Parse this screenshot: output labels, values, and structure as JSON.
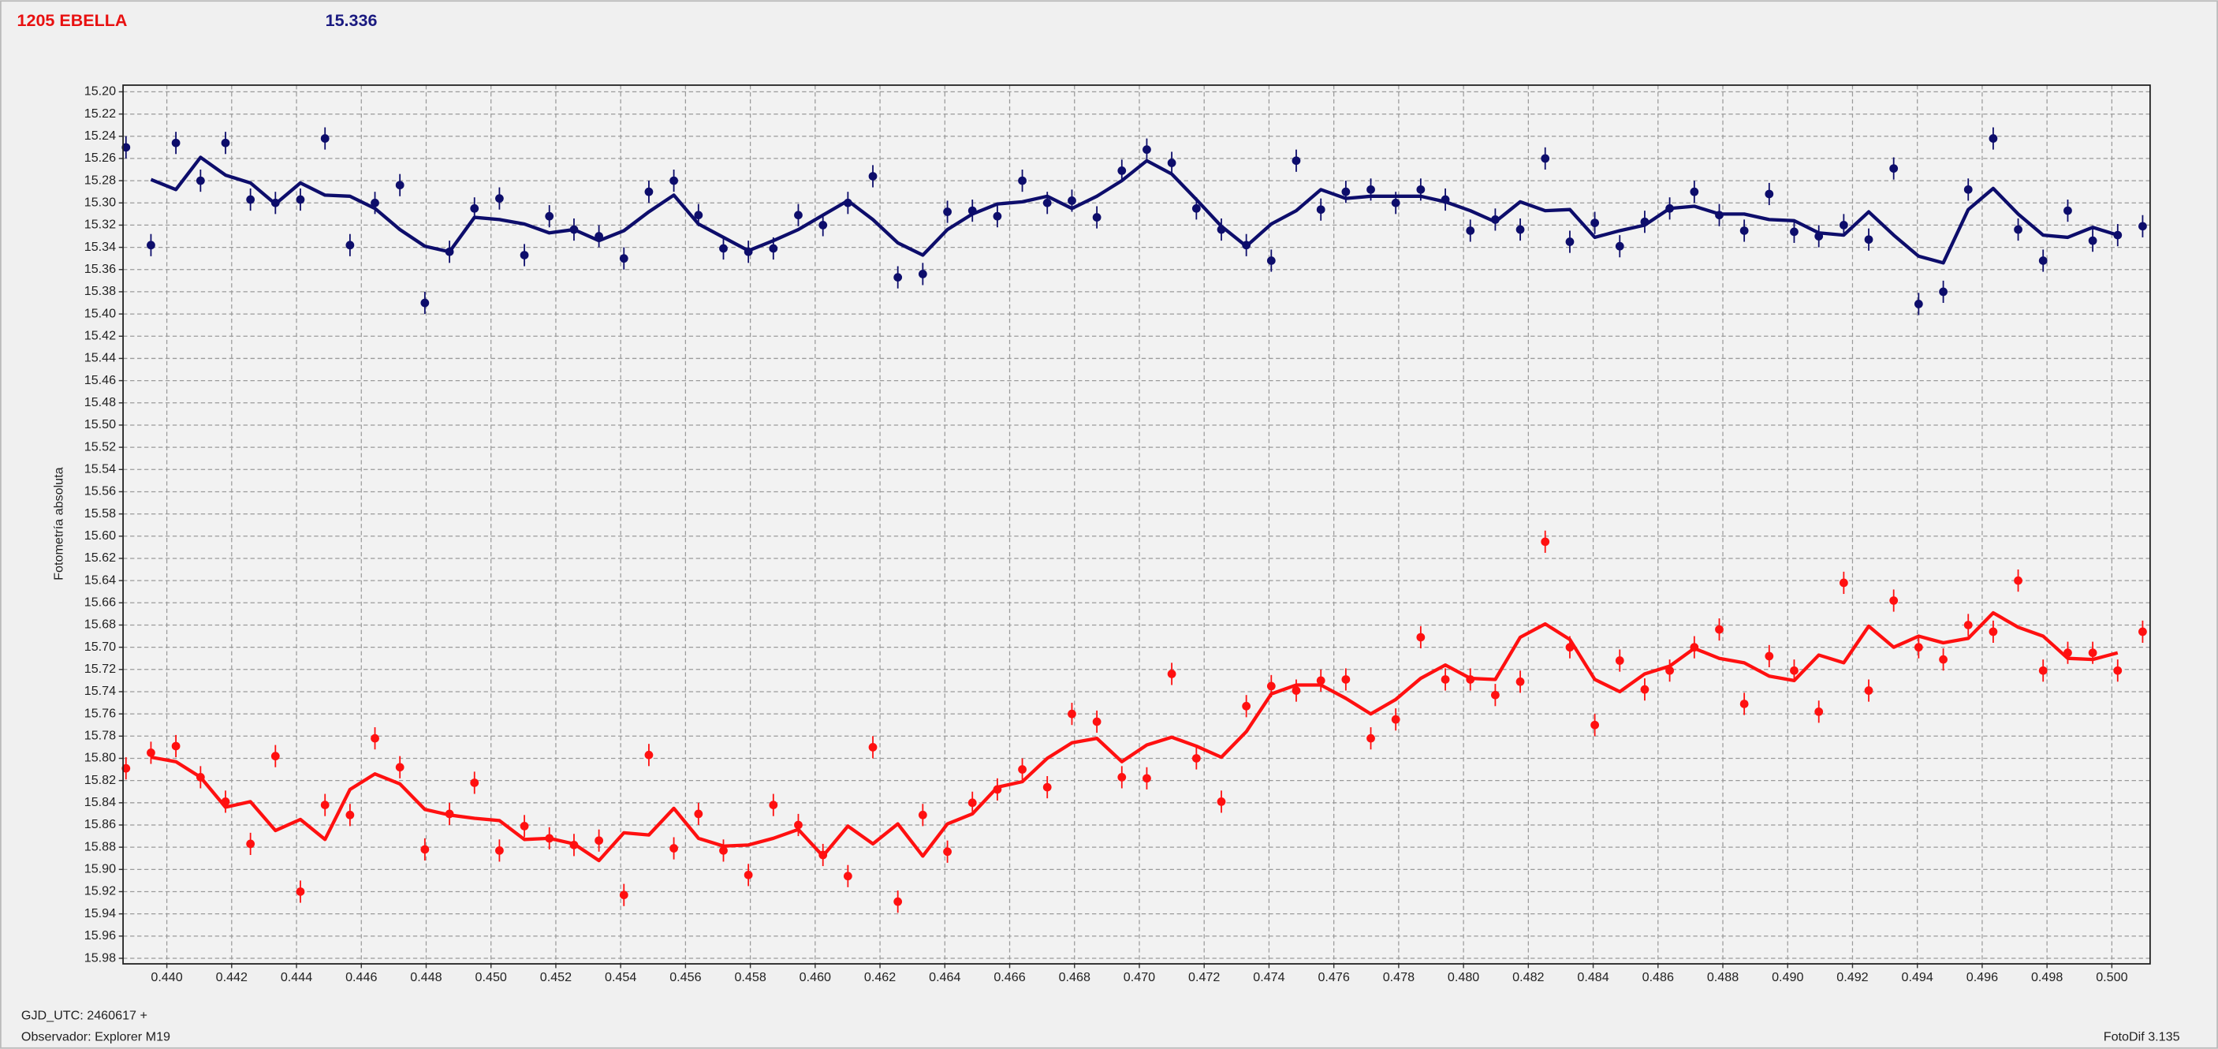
{
  "chart_data": {
    "type": "scatter",
    "title": "1205 EBELLA",
    "subtitle": "15.336",
    "y_label": "Fotometría absoluta",
    "annotations": [
      "GJD_UTC: 2460617 +",
      "Observador: Explorer M19",
      "FotoDif 3.135"
    ],
    "grid": true,
    "xlim": [
      0.43865,
      0.50118
    ],
    "ylim": [
      15.985,
      15.194
    ],
    "xticks": [
      {
        "value": 0.44,
        "label": "0.440"
      },
      0.442,
      0.444,
      0.446,
      0.448,
      {
        "value": 0.45,
        "label": "0.450"
      },
      0.452,
      0.454,
      0.456,
      0.458,
      {
        "value": 0.46,
        "label": "0.460"
      },
      0.462,
      0.464,
      0.466,
      0.468,
      {
        "value": 0.47,
        "label": "0.470"
      },
      0.472,
      0.474,
      0.476,
      0.478,
      {
        "value": 0.48,
        "label": "0.480"
      },
      0.482,
      0.484,
      0.486,
      0.488,
      {
        "value": 0.49,
        "label": "0.490"
      },
      0.492,
      0.494,
      0.496,
      0.498,
      {
        "value": 0.5,
        "label": "0.500"
      }
    ],
    "yticks": [
      {
        "value": 15.2,
        "label": "15.20"
      },
      15.22,
      15.24,
      15.26,
      15.28,
      {
        "value": 15.3,
        "label": "15.30"
      },
      15.32,
      15.34,
      15.36,
      15.38,
      {
        "value": 15.4,
        "label": "15.40"
      },
      15.42,
      15.44,
      15.46,
      15.48,
      {
        "value": 15.5,
        "label": "15.50"
      },
      15.52,
      15.54,
      15.56,
      15.58,
      {
        "value": 15.6,
        "label": "15.60"
      },
      15.62,
      15.64,
      15.66,
      15.68,
      {
        "value": 15.7,
        "label": "15.70"
      },
      15.72,
      15.74,
      15.76,
      15.78,
      {
        "value": 15.8,
        "label": "15.80"
      },
      15.82,
      15.84,
      15.86,
      15.88,
      {
        "value": 15.9,
        "label": "15.90"
      },
      15.92,
      15.94,
      15.96,
      15.98
    ],
    "x": [
      0.43874,
      0.43951,
      0.44028,
      0.44104,
      0.44181,
      0.44258,
      0.44335,
      0.44412,
      0.44488,
      0.44565,
      0.44642,
      0.44719,
      0.44796,
      0.44872,
      0.44949,
      0.45026,
      0.45103,
      0.4518,
      0.45256,
      0.45333,
      0.4541,
      0.45487,
      0.45564,
      0.4564,
      0.45717,
      0.45794,
      0.45871,
      0.45948,
      0.46024,
      0.46101,
      0.46178,
      0.46255,
      0.46332,
      0.46408,
      0.46485,
      0.46562,
      0.46639,
      0.46716,
      0.46792,
      0.46869,
      0.46946,
      0.47023,
      0.471,
      0.47176,
      0.47253,
      0.4733,
      0.47407,
      0.47484,
      0.4756,
      0.47637,
      0.47714,
      0.47791,
      0.47868,
      0.47944,
      0.48021,
      0.48098,
      0.48175,
      0.48252,
      0.48328,
      0.48405,
      0.48482,
      0.48559,
      0.48636,
      0.48712,
      0.48789,
      0.48866,
      0.48943,
      0.4902,
      0.49096,
      0.49173,
      0.4925,
      0.49327,
      0.49404,
      0.4948,
      0.49557,
      0.49634,
      0.49711,
      0.49788,
      0.49864,
      0.49941,
      0.50018,
      0.50095
    ],
    "series": [
      {
        "type": "errorbar",
        "color": "#0d0d6b",
        "error": 0.01,
        "values": [
          15.25,
          15.338,
          15.246,
          15.28,
          15.246,
          15.297,
          15.3,
          15.297,
          15.242,
          15.338,
          15.3,
          15.284,
          15.39,
          15.344,
          15.305,
          15.296,
          15.347,
          15.312,
          15.324,
          15.33,
          15.35,
          15.29,
          15.28,
          15.311,
          15.341,
          15.344,
          15.341,
          15.311,
          15.32,
          15.3,
          15.276,
          15.367,
          15.364,
          15.308,
          15.307,
          15.312,
          15.28,
          15.3,
          15.298,
          15.313,
          15.271,
          15.252,
          15.264,
          15.305,
          15.324,
          15.338,
          15.352,
          15.262,
          15.306,
          15.29,
          15.288,
          15.3,
          15.288,
          15.297,
          15.325,
          15.315,
          15.324,
          15.26,
          15.335,
          15.318,
          15.339,
          15.317,
          15.305,
          15.29,
          15.311,
          15.325,
          15.292,
          15.326,
          15.33,
          15.32,
          15.333,
          15.269,
          15.391,
          15.38,
          15.288,
          15.242,
          15.324,
          15.352,
          15.307,
          15.334,
          15.329,
          15.321
        ]
      },
      {
        "type": "errorbar",
        "color": "#ff1010",
        "error": 0.01,
        "values": [
          15.809,
          15.795,
          15.789,
          15.817,
          15.839,
          15.877,
          15.798,
          15.92,
          15.842,
          15.851,
          15.782,
          15.808,
          15.882,
          15.85,
          15.822,
          15.883,
          15.861,
          15.872,
          15.878,
          15.874,
          15.923,
          15.797,
          15.881,
          15.85,
          15.883,
          15.905,
          15.842,
          15.86,
          15.887,
          15.906,
          15.79,
          15.929,
          15.851,
          15.884,
          15.84,
          15.828,
          15.81,
          15.826,
          15.76,
          15.767,
          15.817,
          15.818,
          15.724,
          15.8,
          15.839,
          15.753,
          15.735,
          15.739,
          15.73,
          15.729,
          15.782,
          15.765,
          15.691,
          15.729,
          15.729,
          15.743,
          15.731,
          15.605,
          15.7,
          15.77,
          15.712,
          15.738,
          15.721,
          15.7,
          15.684,
          15.751,
          15.708,
          15.721,
          15.758,
          15.642,
          15.739,
          15.658,
          15.7,
          15.711,
          15.68,
          15.686,
          15.64,
          15.721,
          15.705,
          15.705,
          15.721,
          15.686
        ]
      },
      {
        "type": "line",
        "color": "#0d0d6b",
        "values": [
          null,
          15.279,
          15.288,
          15.259,
          15.275,
          15.282,
          15.301,
          15.282,
          15.293,
          15.294,
          15.305,
          15.324,
          15.339,
          15.344,
          15.313,
          15.315,
          15.319,
          15.327,
          15.324,
          15.334,
          15.325,
          15.308,
          15.293,
          15.319,
          15.331,
          15.343,
          15.334,
          15.324,
          15.311,
          15.298,
          15.315,
          15.336,
          15.347,
          15.324,
          15.31,
          15.301,
          15.299,
          15.294,
          15.305,
          15.294,
          15.28,
          15.262,
          15.274,
          15.297,
          15.321,
          15.339,
          15.319,
          15.307,
          15.288,
          15.296,
          15.294,
          15.294,
          15.294,
          15.299,
          15.307,
          15.317,
          15.299,
          15.307,
          15.306,
          15.331,
          15.325,
          15.32,
          15.305,
          15.303,
          15.31,
          15.31,
          15.315,
          15.316,
          15.327,
          15.329,
          15.308,
          15.329,
          15.348,
          15.354,
          15.306,
          15.287,
          15.31,
          15.329,
          15.331,
          15.322,
          15.329,
          null
        ]
      },
      {
        "type": "line",
        "color": "#ff1010",
        "values": [
          null,
          15.799,
          15.803,
          15.817,
          15.844,
          15.839,
          15.865,
          15.855,
          15.873,
          15.828,
          15.814,
          15.823,
          15.846,
          15.851,
          15.854,
          15.856,
          15.873,
          15.872,
          15.877,
          15.892,
          15.867,
          15.869,
          15.845,
          15.872,
          15.879,
          15.878,
          15.872,
          15.864,
          15.888,
          15.861,
          15.877,
          15.859,
          15.888,
          15.859,
          15.85,
          15.826,
          15.821,
          15.8,
          15.786,
          15.782,
          15.803,
          15.788,
          15.781,
          15.789,
          15.799,
          15.776,
          15.742,
          15.734,
          15.734,
          15.746,
          15.76,
          15.747,
          15.728,
          15.716,
          15.728,
          15.729,
          15.691,
          15.679,
          15.693,
          15.729,
          15.74,
          15.724,
          15.717,
          15.701,
          15.71,
          15.714,
          15.726,
          15.73,
          15.707,
          15.714,
          15.681,
          15.7,
          15.69,
          15.696,
          15.692,
          15.669,
          15.682,
          15.69,
          15.71,
          15.711,
          15.705,
          null
        ]
      }
    ]
  }
}
